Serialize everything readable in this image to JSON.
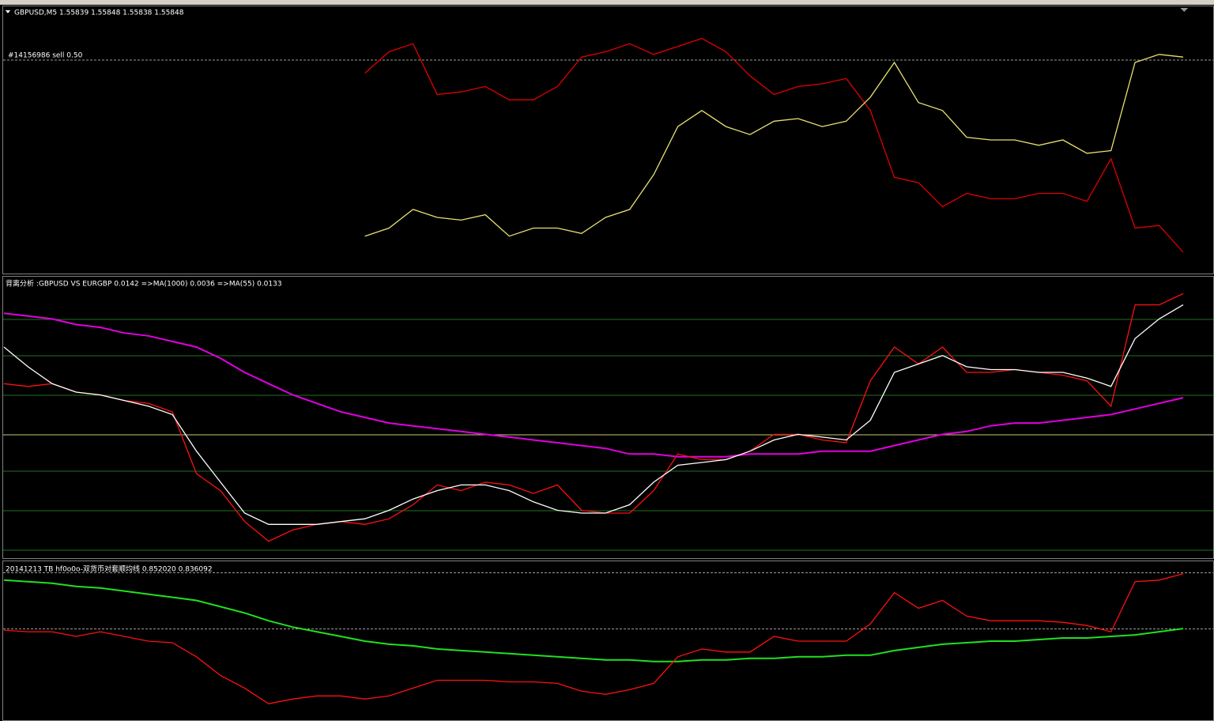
{
  "chart_data": [
    {
      "type": "line",
      "title": "GBPUSD,M5  1.55839 1.55848 1.55838 1.55848",
      "order_label": "#14156986 sell 0.50",
      "ylim": [
        0,
        100
      ],
      "levels": [
        {
          "value": 80,
          "color": "#8fa08f",
          "dash": true
        }
      ],
      "series": [
        {
          "color": "#e00000",
          "values": [
            null,
            null,
            null,
            null,
            null,
            null,
            null,
            null,
            null,
            null,
            null,
            null,
            null,
            null,
            null,
            75,
            83,
            86,
            67,
            68,
            70,
            65,
            65,
            70,
            81,
            83,
            86,
            82,
            85,
            88,
            83,
            74,
            67,
            70,
            71,
            73,
            61,
            36,
            34,
            25,
            30,
            28,
            28,
            30,
            30,
            27,
            43,
            17,
            18,
            8
          ]
        },
        {
          "color": "#e8e070",
          "values": [
            null,
            null,
            null,
            null,
            null,
            null,
            null,
            null,
            null,
            null,
            null,
            null,
            null,
            null,
            null,
            14,
            17,
            24,
            21,
            20,
            22,
            14,
            17,
            17,
            15,
            21,
            24,
            37,
            55,
            61,
            55,
            52,
            57,
            58,
            55,
            57,
            66,
            79,
            64,
            61,
            51,
            50,
            50,
            48,
            50,
            45,
            46,
            79,
            82,
            81
          ]
        }
      ]
    },
    {
      "type": "line",
      "title": "背离分析 :GBPUSD VS EURGBP 0.0142  =>MA(1000) 0.0036  =>MA(55) 0.0133",
      "ylim": [
        0,
        100
      ],
      "levels": [
        {
          "value": 85,
          "color": "#1f6f1f",
          "dash": false
        },
        {
          "value": 72,
          "color": "#1f6f1f",
          "dash": false
        },
        {
          "value": 58,
          "color": "#1f6f1f",
          "dash": false
        },
        {
          "value": 44,
          "color": "#c8c878",
          "dash": false
        },
        {
          "value": 31,
          "color": "#1f6f1f",
          "dash": false
        },
        {
          "value": 17,
          "color": "#1f6f1f",
          "dash": false
        },
        {
          "value": 3,
          "color": "#1f6f1f",
          "dash": false
        }
      ],
      "series": [
        {
          "color": "#e000e0",
          "values": [
            87,
            86,
            85,
            83,
            82,
            80,
            79,
            77,
            75,
            71,
            66,
            62,
            58,
            55,
            52,
            50,
            48,
            47,
            46,
            45,
            44,
            43,
            42,
            41,
            40,
            39,
            37,
            37,
            36,
            36,
            36,
            37,
            37,
            37,
            38,
            38,
            38,
            40,
            42,
            44,
            45,
            47,
            48,
            48,
            49,
            50,
            51,
            53,
            55,
            57
          ]
        },
        {
          "color": "#ff1010",
          "values": [
            62,
            61,
            62,
            59,
            58,
            56,
            55,
            52,
            30,
            24,
            13,
            6,
            10,
            12,
            13,
            12,
            14,
            19,
            26,
            24,
            27,
            26,
            23,
            26,
            17,
            16,
            16,
            24,
            37,
            35,
            35,
            38,
            44,
            44,
            42,
            41,
            63,
            75,
            69,
            75,
            66,
            66,
            67,
            66,
            65,
            63,
            54,
            90,
            90,
            94
          ]
        },
        {
          "color": "#ffffff",
          "values": [
            75,
            68,
            62,
            59,
            58,
            56,
            54,
            51,
            38,
            27,
            16,
            12,
            12,
            12,
            13,
            14,
            17,
            21,
            24,
            26,
            26,
            24,
            20,
            17,
            16,
            16,
            19,
            27,
            33,
            34,
            35,
            38,
            42,
            44,
            43,
            42,
            49,
            66,
            69,
            72,
            68,
            67,
            67,
            66,
            66,
            64,
            61,
            78,
            85,
            90
          ]
        }
      ]
    },
    {
      "type": "line",
      "title": "20141213 TB hf0o0o-双货币对套顺均线 0.852020 0.836092",
      "ylim": [
        0,
        100
      ],
      "levels": [
        {
          "value": 93,
          "color": "#9a9a9a",
          "dash": true
        },
        {
          "value": 57,
          "color": "#9a9a9a",
          "dash": true
        }
      ],
      "series": [
        {
          "color": "#20e020",
          "values": [
            88,
            87,
            86,
            84,
            83,
            81,
            79,
            77,
            75,
            71,
            67,
            62,
            58,
            55,
            52,
            49,
            47,
            46,
            44,
            43,
            42,
            41,
            40,
            39,
            38,
            37,
            37,
            36,
            36,
            37,
            37,
            38,
            38,
            39,
            39,
            40,
            40,
            43,
            45,
            47,
            48,
            49,
            49,
            50,
            51,
            51,
            52,
            53,
            55,
            57
          ]
        },
        {
          "color": "#ff1010",
          "values": [
            56,
            55,
            55,
            52,
            55,
            52,
            49,
            48,
            39,
            27,
            19,
            9,
            12,
            14,
            14,
            12,
            14,
            19,
            24,
            24,
            24,
            23,
            23,
            22,
            17,
            15,
            18,
            22,
            39,
            44,
            42,
            42,
            52,
            49,
            49,
            49,
            60,
            80,
            70,
            75,
            65,
            62,
            62,
            62,
            61,
            59,
            55,
            87,
            88,
            92
          ]
        }
      ]
    }
  ]
}
